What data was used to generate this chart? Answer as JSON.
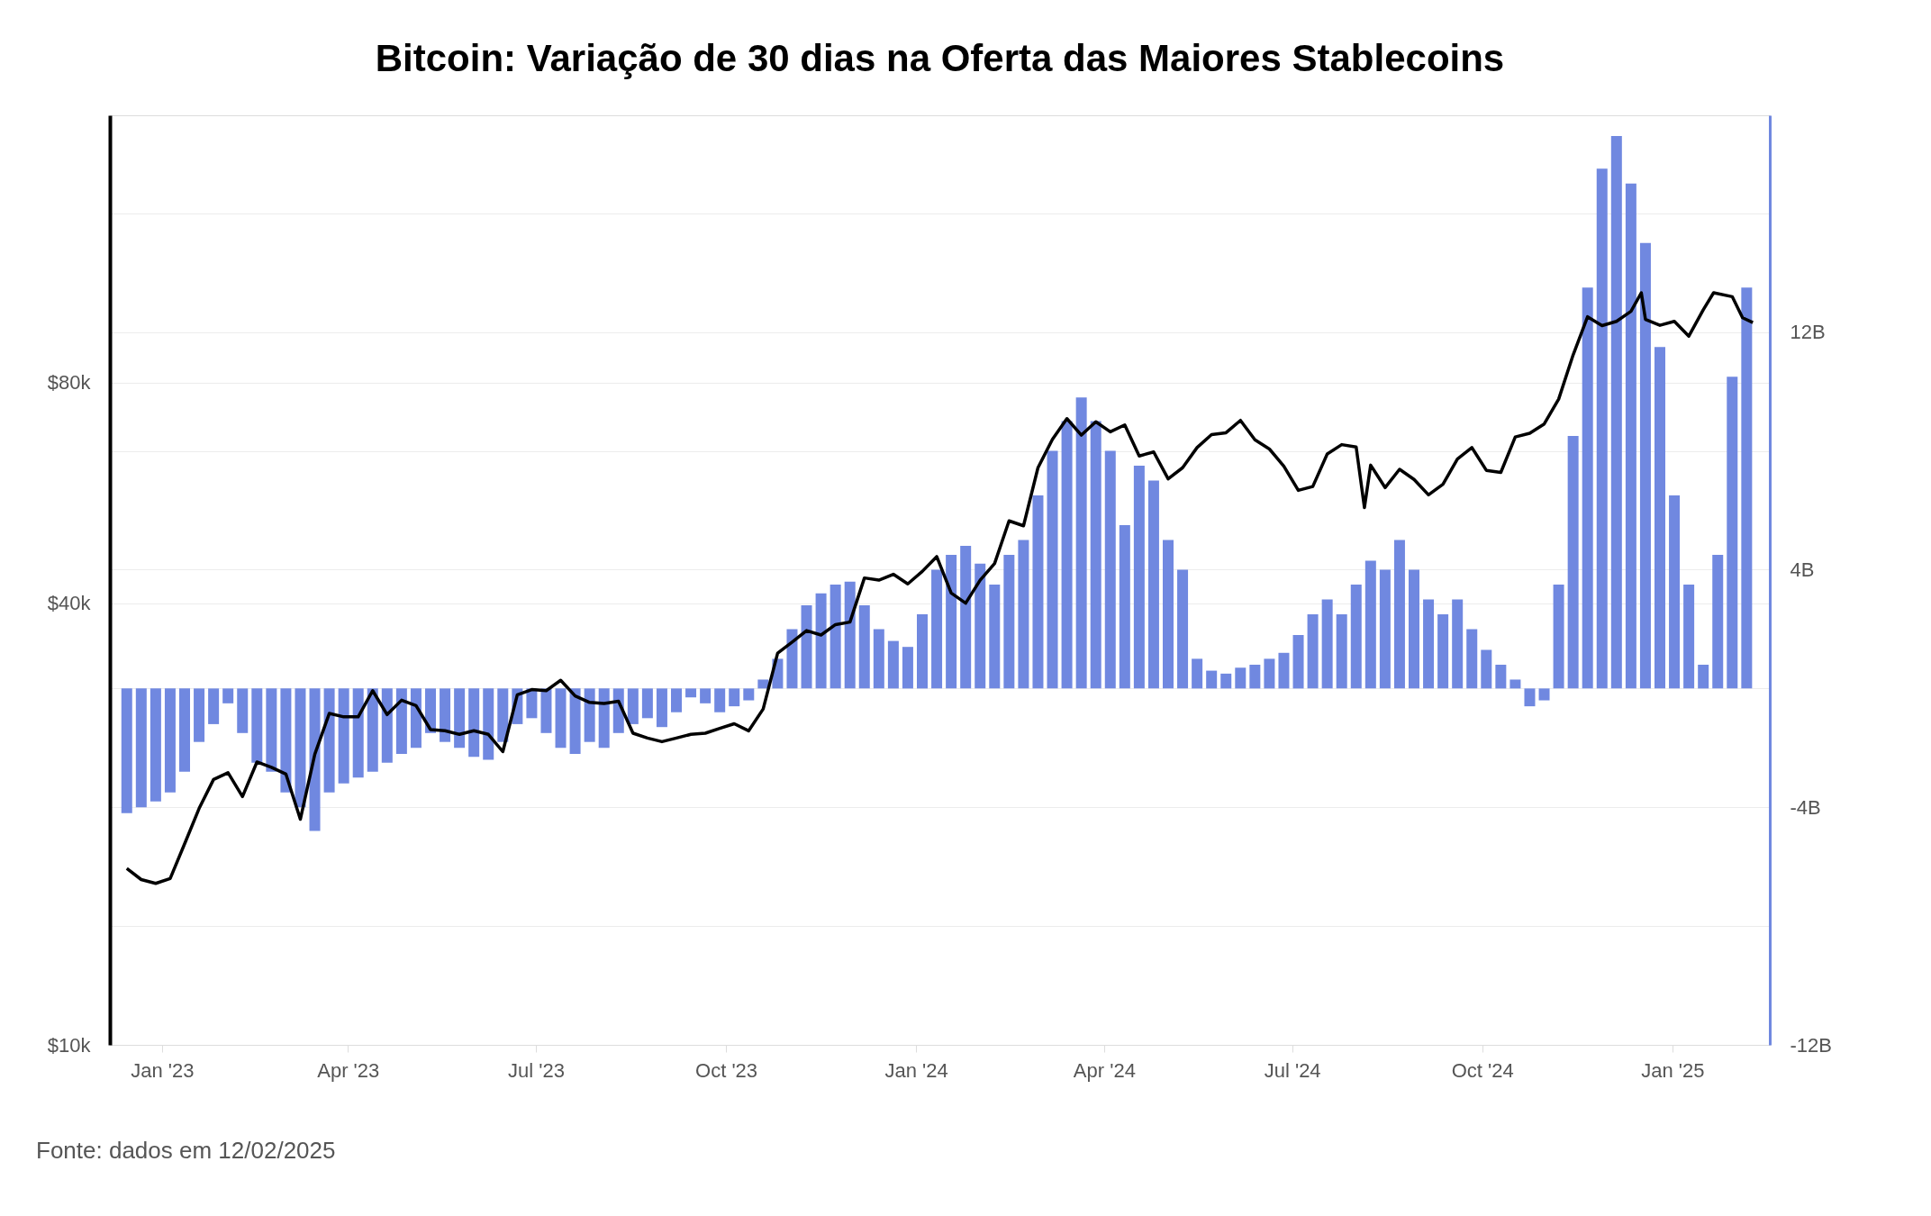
{
  "chart_data": {
    "type": "bar",
    "title": "Bitcoin: Variação de 30 dias na Oferta das Maiores Stablecoins",
    "annotations": [
      "Fonte: dados em 12/02/2025"
    ],
    "xlim": [
      "2022-12-09",
      "2025-02-15"
    ],
    "xticks": [
      {
        "value": "2023-01-01",
        "label": "Jan '23"
      },
      {
        "value": "2023-04-01",
        "label": "Apr '23"
      },
      {
        "value": "2023-07-01",
        "label": "Jul '23"
      },
      {
        "value": "2023-10-01",
        "label": "Oct '23"
      },
      {
        "value": "2024-01-01",
        "label": "Jan '24"
      },
      {
        "value": "2024-04-01",
        "label": "Apr '24"
      },
      {
        "value": "2024-07-01",
        "label": "Jul '24"
      },
      {
        "value": "2024-10-01",
        "label": "Oct '24"
      },
      {
        "value": "2025-01-01",
        "label": "Jan '25"
      }
    ],
    "ylim": [
      10000,
      185000
    ],
    "yticks": [
      {
        "value": 10000,
        "label": "$10k"
      },
      {
        "value": 40000,
        "label": "$40k"
      },
      {
        "value": 80000,
        "label": "$80k"
      }
    ],
    "y2lim": [
      -12,
      19.3
    ],
    "y2ticks": [
      {
        "value": -12,
        "label": "-12B"
      },
      {
        "value": -8,
        "label": null
      },
      {
        "value": -4,
        "label": "-4B"
      },
      {
        "value": 0,
        "label": null
      },
      {
        "value": 4,
        "label": "4B"
      },
      {
        "value": 8,
        "label": null
      },
      {
        "value": 12,
        "label": "12B"
      },
      {
        "value": 16,
        "label": null
      }
    ],
    "log": "y",
    "grid": "y",
    "series": [
      {
        "axis": "y2",
        "color": "#7088e0",
        "x": [
          "2022-12-15",
          "2022-12-22",
          "2022-12-29",
          "2023-01-05",
          "2023-01-12",
          "2023-01-19",
          "2023-01-26",
          "2023-02-02",
          "2023-02-09",
          "2023-02-16",
          "2023-02-23",
          "2023-03-02",
          "2023-03-09",
          "2023-03-16",
          "2023-03-23",
          "2023-03-30",
          "2023-04-06",
          "2023-04-13",
          "2023-04-20",
          "2023-04-27",
          "2023-05-04",
          "2023-05-11",
          "2023-05-18",
          "2023-05-25",
          "2023-06-01",
          "2023-06-08",
          "2023-06-15",
          "2023-06-22",
          "2023-06-29",
          "2023-07-06",
          "2023-07-13",
          "2023-07-20",
          "2023-07-27",
          "2023-08-03",
          "2023-08-10",
          "2023-08-17",
          "2023-08-24",
          "2023-08-31",
          "2023-09-07",
          "2023-09-14",
          "2023-09-21",
          "2023-09-28",
          "2023-10-05",
          "2023-10-12",
          "2023-10-19",
          "2023-10-26",
          "2023-11-02",
          "2023-11-09",
          "2023-11-16",
          "2023-11-23",
          "2023-11-30",
          "2023-12-07",
          "2023-12-14",
          "2023-12-21",
          "2023-12-28",
          "2024-01-04",
          "2024-01-11",
          "2024-01-18",
          "2024-01-25",
          "2024-02-01",
          "2024-02-08",
          "2024-02-15",
          "2024-02-22",
          "2024-02-29",
          "2024-03-07",
          "2024-03-14",
          "2024-03-21",
          "2024-03-28",
          "2024-04-04",
          "2024-04-11",
          "2024-04-18",
          "2024-04-25",
          "2024-05-02",
          "2024-05-09",
          "2024-05-16",
          "2024-05-23",
          "2024-05-30",
          "2024-06-06",
          "2024-06-13",
          "2024-06-20",
          "2024-06-27",
          "2024-07-04",
          "2024-07-11",
          "2024-07-18",
          "2024-07-25",
          "2024-08-01",
          "2024-08-08",
          "2024-08-15",
          "2024-08-22",
          "2024-08-29",
          "2024-09-05",
          "2024-09-12",
          "2024-09-19",
          "2024-09-26",
          "2024-10-03",
          "2024-10-10",
          "2024-10-17",
          "2024-10-24",
          "2024-10-31",
          "2024-11-07",
          "2024-11-14",
          "2024-11-21",
          "2024-11-28",
          "2024-12-05",
          "2024-12-12",
          "2024-12-19",
          "2024-12-26",
          "2025-01-02",
          "2025-01-09",
          "2025-01-16",
          "2025-01-23",
          "2025-01-30",
          "2025-02-06"
        ],
        "values": [
          -4.2,
          -4.0,
          -3.8,
          -3.5,
          -2.8,
          -1.8,
          -1.2,
          -0.5,
          -1.5,
          -2.5,
          -2.8,
          -3.5,
          -4.0,
          -4.8,
          -3.5,
          -3.2,
          -3.0,
          -2.8,
          -2.5,
          -2.2,
          -2.0,
          -1.5,
          -1.8,
          -2.0,
          -2.3,
          -2.4,
          -1.8,
          -1.2,
          -1.0,
          -1.5,
          -2.0,
          -2.2,
          -1.8,
          -2.0,
          -1.5,
          -1.2,
          -1.0,
          -1.3,
          -0.8,
          -0.3,
          -0.5,
          -0.8,
          -0.6,
          -0.4,
          0.3,
          1.0,
          2.0,
          2.8,
          3.2,
          3.5,
          3.6,
          2.8,
          2.0,
          1.6,
          1.4,
          2.5,
          4.0,
          4.5,
          4.8,
          4.2,
          3.5,
          4.5,
          5.0,
          6.5,
          8.0,
          9.0,
          9.8,
          9.0,
          8.0,
          5.5,
          7.5,
          7.0,
          5.0,
          4.0,
          1.0,
          0.6,
          0.5,
          0.7,
          0.8,
          1.0,
          1.2,
          1.8,
          2.5,
          3.0,
          2.5,
          3.5,
          4.3,
          4.0,
          5.0,
          4.0,
          3.0,
          2.5,
          3.0,
          2.0,
          1.3,
          0.8,
          0.3,
          -0.6,
          -0.4,
          3.5,
          8.5,
          13.5,
          17.5,
          18.6,
          17.0,
          15.0,
          11.5,
          6.5,
          3.5,
          0.8,
          4.5,
          10.5,
          13.5
        ]
      },
      {
        "type": "line",
        "axis": "y",
        "color": "#000000",
        "x": [
          "2022-12-15",
          "2022-12-22",
          "2022-12-29",
          "2023-01-05",
          "2023-01-12",
          "2023-01-19",
          "2023-01-26",
          "2023-02-02",
          "2023-02-09",
          "2023-02-16",
          "2023-02-23",
          "2023-03-02",
          "2023-03-09",
          "2023-03-16",
          "2023-03-23",
          "2023-03-30",
          "2023-04-06",
          "2023-04-13",
          "2023-04-20",
          "2023-04-27",
          "2023-05-04",
          "2023-05-11",
          "2023-05-18",
          "2023-05-25",
          "2023-06-01",
          "2023-06-08",
          "2023-06-15",
          "2023-06-22",
          "2023-06-29",
          "2023-07-06",
          "2023-07-13",
          "2023-07-20",
          "2023-07-27",
          "2023-08-03",
          "2023-08-10",
          "2023-08-17",
          "2023-08-24",
          "2023-08-31",
          "2023-09-07",
          "2023-09-14",
          "2023-09-21",
          "2023-09-28",
          "2023-10-05",
          "2023-10-12",
          "2023-10-19",
          "2023-10-26",
          "2023-11-02",
          "2023-11-09",
          "2023-11-16",
          "2023-11-23",
          "2023-11-30",
          "2023-12-07",
          "2023-12-14",
          "2023-12-21",
          "2023-12-28",
          "2024-01-04",
          "2024-01-11",
          "2024-01-18",
          "2024-01-25",
          "2024-02-01",
          "2024-02-08",
          "2024-02-15",
          "2024-02-22",
          "2024-02-29",
          "2024-03-07",
          "2024-03-14",
          "2024-03-21",
          "2024-03-28",
          "2024-04-04",
          "2024-04-11",
          "2024-04-18",
          "2024-04-25",
          "2024-05-02",
          "2024-05-09",
          "2024-05-16",
          "2024-05-23",
          "2024-05-30",
          "2024-06-06",
          "2024-06-13",
          "2024-06-20",
          "2024-06-27",
          "2024-07-04",
          "2024-07-11",
          "2024-07-18",
          "2024-07-25",
          "2024-08-01",
          "2024-08-05",
          "2024-08-08",
          "2024-08-15",
          "2024-08-22",
          "2024-08-29",
          "2024-09-05",
          "2024-09-12",
          "2024-09-19",
          "2024-09-26",
          "2024-10-03",
          "2024-10-10",
          "2024-10-17",
          "2024-10-24",
          "2024-10-31",
          "2024-11-07",
          "2024-11-14",
          "2024-11-21",
          "2024-11-28",
          "2024-12-05",
          "2024-12-12",
          "2024-12-17",
          "2024-12-19",
          "2024-12-26",
          "2025-01-02",
          "2025-01-09",
          "2025-01-16",
          "2025-01-21",
          "2025-01-30",
          "2025-02-04",
          "2025-02-09"
        ],
        "values": [
          17400,
          16800,
          16600,
          16850,
          18800,
          21000,
          23000,
          23500,
          21800,
          24300,
          23900,
          23400,
          20300,
          24900,
          28300,
          28000,
          28000,
          30400,
          28200,
          29500,
          29000,
          26900,
          26800,
          26500,
          26800,
          26500,
          25100,
          30000,
          30500,
          30400,
          31400,
          29900,
          29300,
          29200,
          29400,
          26600,
          26200,
          25900,
          26200,
          26500,
          26600,
          27000,
          27400,
          26800,
          28700,
          34200,
          35400,
          36700,
          36200,
          37400,
          37700,
          43300,
          43000,
          43800,
          42500,
          44200,
          46300,
          41300,
          40000,
          43000,
          45300,
          51800,
          51000,
          61200,
          66900,
          71400,
          67800,
          70700,
          68500,
          70000,
          63500,
          64300,
          59100,
          61200,
          65200,
          67900,
          68300,
          71000,
          66800,
          64900,
          61500,
          57000,
          57700,
          63900,
          65800,
          65300,
          54000,
          61700,
          57500,
          60900,
          59000,
          56200,
          58100,
          62900,
          65200,
          60700,
          60300,
          67400,
          68200,
          70200,
          75900,
          87200,
          98300,
          95600,
          96900,
          100000,
          106000,
          97500,
          95700,
          96900,
          92500,
          100500,
          106000,
          104700,
          98000,
          96500
        ]
      }
    ]
  }
}
